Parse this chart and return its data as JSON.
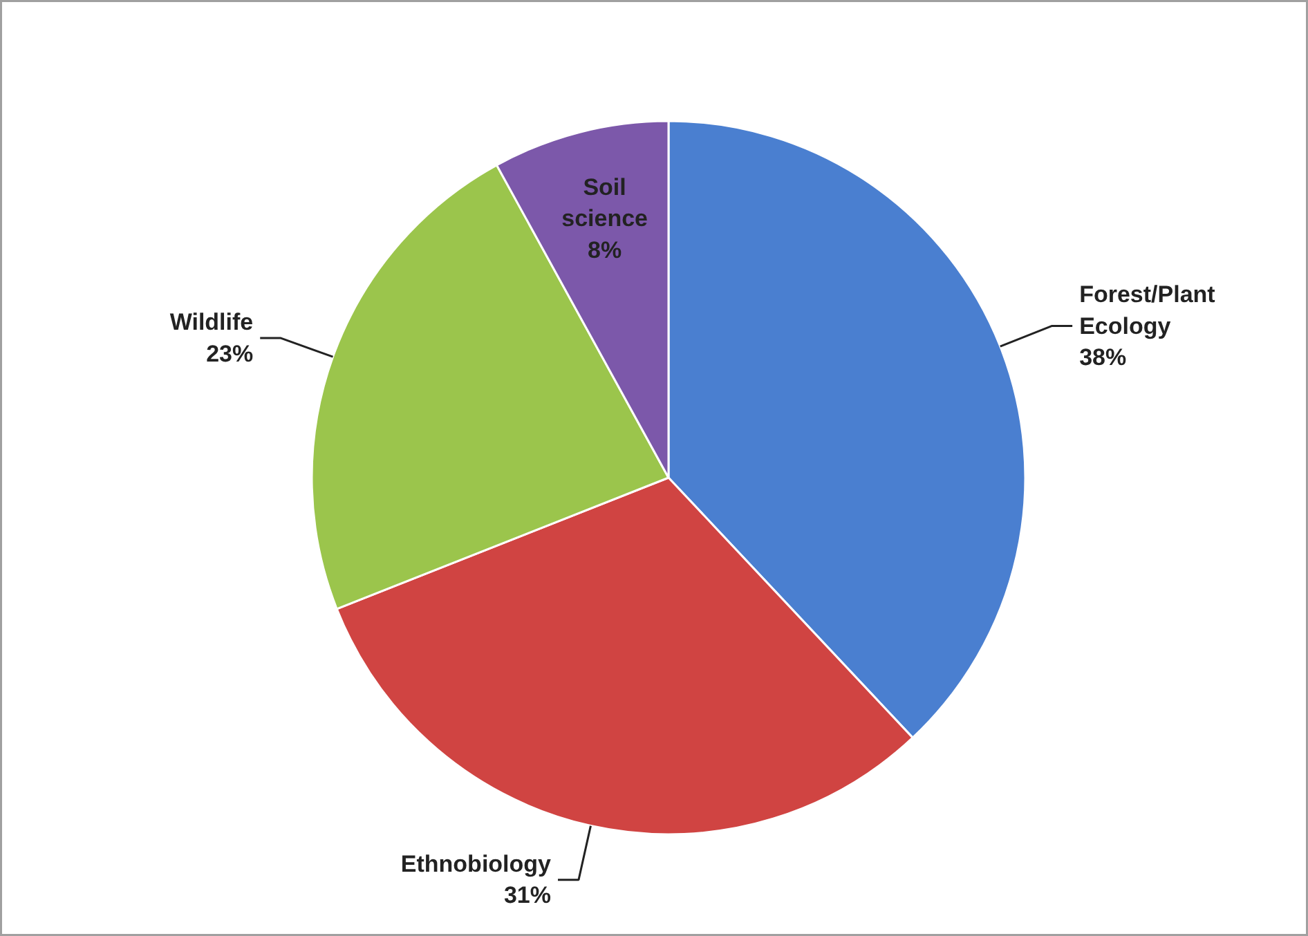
{
  "chart_data": {
    "type": "pie",
    "categories": [
      "Forest/Plant Ecology",
      "Ethnobiology",
      "Wildlife",
      "Soil science"
    ],
    "values": [
      38,
      31,
      23,
      8
    ],
    "colors": [
      "#4a7fd0",
      "#d04442",
      "#9bc54c",
      "#7c58aa"
    ],
    "value_labels": [
      "38%",
      "31%",
      "23%",
      "8%"
    ]
  }
}
